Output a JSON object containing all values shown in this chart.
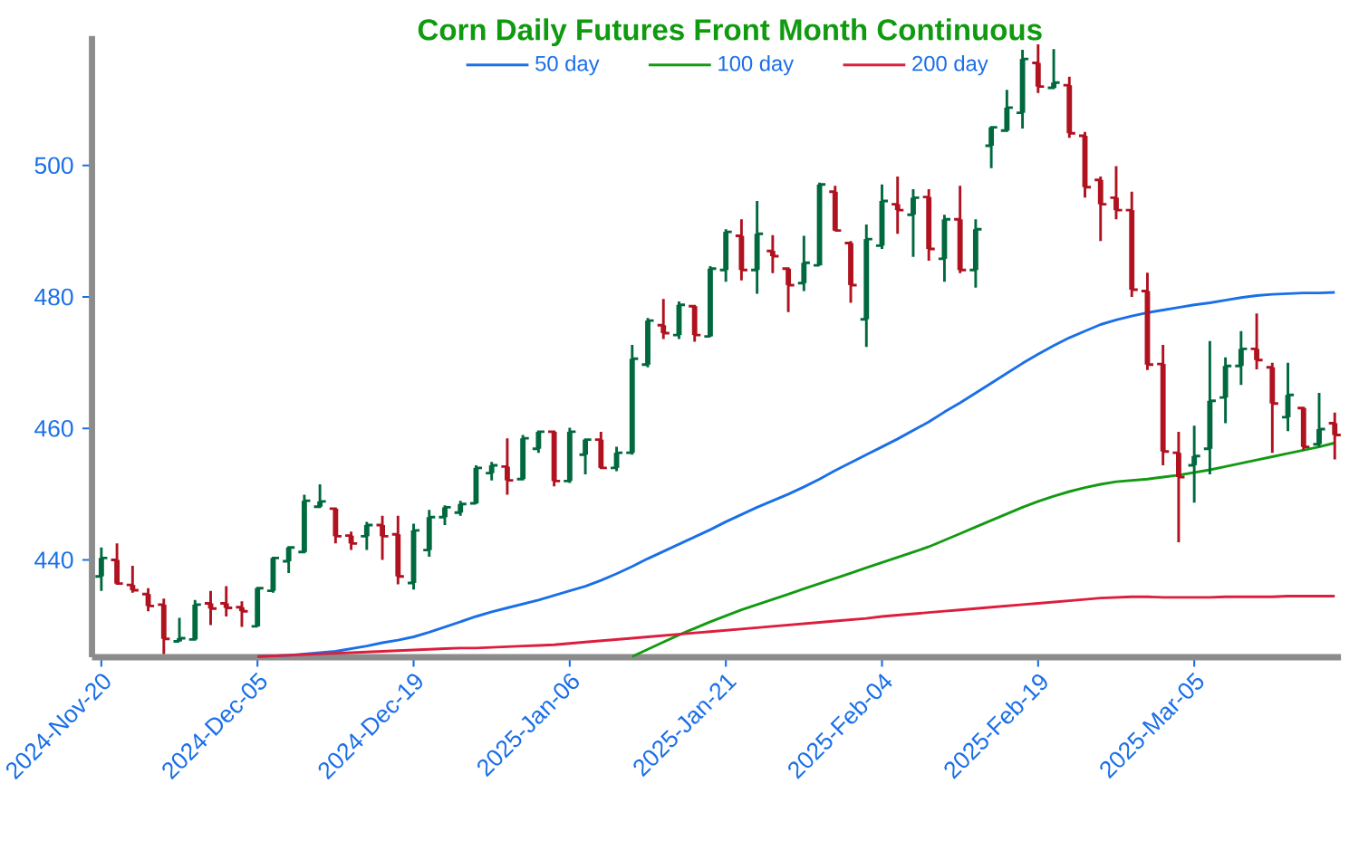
{
  "chart_data": {
    "type": "candlestick",
    "title": "Corn Daily Futures Front Month Continuous",
    "categories": [
      "2024-Nov-20",
      null,
      null,
      null,
      null,
      null,
      null,
      null,
      null,
      null,
      "2024-Dec-05",
      null,
      null,
      null,
      null,
      null,
      null,
      null,
      null,
      null,
      "2024-Dec-19",
      null,
      null,
      null,
      null,
      null,
      null,
      null,
      null,
      null,
      "2025-Jan-06",
      null,
      null,
      null,
      null,
      null,
      null,
      null,
      null,
      null,
      "2025-Jan-21",
      null,
      null,
      null,
      null,
      null,
      null,
      null,
      null,
      null,
      "2025-Feb-04",
      null,
      null,
      null,
      null,
      null,
      null,
      null,
      null,
      null,
      "2025-Feb-19",
      null,
      null,
      null,
      null,
      null,
      null,
      null,
      null,
      null,
      "2025-Mar-05",
      null,
      null,
      null,
      null,
      null,
      null,
      null,
      null,
      null
    ],
    "ohlc": [
      [
        437.5,
        441.9,
        435.3,
        440.3
      ],
      [
        440.0,
        442.5,
        436.2,
        436.4
      ],
      [
        436.2,
        439.1,
        435.0,
        435.4
      ],
      [
        434.8,
        435.7,
        432.2,
        433.0
      ],
      [
        433.2,
        434.1,
        425.7,
        428.0
      ],
      [
        427.6,
        431.2,
        427.6,
        428.1
      ],
      [
        427.9,
        433.9,
        427.7,
        433.2
      ],
      [
        433.4,
        435.3,
        430.1,
        432.6
      ],
      [
        433.4,
        436.0,
        431.4,
        432.7
      ],
      [
        432.8,
        433.7,
        429.8,
        432.2
      ],
      [
        429.9,
        435.9,
        429.8,
        435.7
      ],
      [
        435.3,
        440.5,
        435.0,
        440.3
      ],
      [
        439.8,
        442.1,
        438.0,
        441.9
      ],
      [
        441.2,
        449.9,
        441.0,
        449.0
      ],
      [
        448.1,
        451.5,
        447.9,
        448.9
      ],
      [
        447.8,
        448.0,
        442.5,
        443.6
      ],
      [
        443.7,
        444.3,
        441.5,
        442.5
      ],
      [
        443.6,
        445.8,
        441.5,
        445.3
      ],
      [
        445.3,
        446.7,
        440.0,
        443.6
      ],
      [
        443.9,
        446.7,
        436.3,
        437.5
      ],
      [
        436.5,
        445.5,
        435.5,
        444.5
      ],
      [
        441.5,
        447.6,
        440.5,
        446.5
      ],
      [
        446.5,
        448.3,
        445.3,
        448.0
      ],
      [
        447.2,
        449.0,
        446.7,
        448.5
      ],
      [
        448.6,
        454.4,
        448.5,
        454.0
      ],
      [
        453.2,
        454.9,
        452.1,
        454.4
      ],
      [
        454.2,
        458.5,
        449.9,
        452.1
      ],
      [
        452.3,
        459.0,
        452.1,
        458.5
      ],
      [
        456.9,
        459.7,
        456.3,
        459.5
      ],
      [
        459.5,
        459.7,
        451.2,
        452.0
      ],
      [
        452.0,
        460.1,
        451.7,
        459.5
      ],
      [
        456.0,
        458.5,
        453.0,
        458.3
      ],
      [
        458.3,
        459.5,
        453.8,
        454.0
      ],
      [
        454.0,
        457.2,
        453.5,
        456.3
      ],
      [
        456.3,
        472.7,
        456.0,
        470.6
      ],
      [
        469.7,
        476.8,
        469.3,
        476.4
      ],
      [
        475.7,
        479.7,
        473.6,
        474.5
      ],
      [
        474.2,
        479.3,
        473.6,
        478.8
      ],
      [
        478.6,
        478.8,
        473.2,
        474.2
      ],
      [
        474.0,
        484.7,
        473.9,
        484.3
      ],
      [
        484.1,
        490.3,
        482.3,
        489.9
      ],
      [
        489.3,
        491.8,
        482.5,
        484.1
      ],
      [
        484.1,
        494.6,
        480.5,
        489.6
      ],
      [
        487.0,
        489.4,
        483.6,
        486.2
      ],
      [
        484.3,
        484.5,
        477.7,
        481.8
      ],
      [
        482.1,
        489.3,
        480.9,
        485.2
      ],
      [
        484.8,
        497.4,
        484.8,
        497.1
      ],
      [
        496.0,
        496.9,
        490.0,
        490.1
      ],
      [
        488.2,
        488.5,
        479.1,
        481.8
      ],
      [
        476.6,
        491.0,
        472.4,
        488.8
      ],
      [
        487.8,
        497.1,
        487.3,
        494.6
      ],
      [
        494.1,
        498.3,
        489.6,
        493.2
      ],
      [
        492.5,
        496.4,
        486.1,
        495.1
      ],
      [
        495.2,
        496.4,
        485.5,
        487.3
      ],
      [
        485.8,
        492.5,
        482.3,
        491.8
      ],
      [
        491.8,
        496.9,
        483.6,
        484.1
      ],
      [
        484.1,
        491.8,
        481.4,
        490.3
      ],
      [
        503.0,
        506.0,
        499.6,
        505.8
      ],
      [
        505.3,
        511.5,
        505.1,
        508.8
      ],
      [
        508.0,
        517.6,
        505.6,
        516.2
      ],
      [
        515.6,
        518.4,
        511.0,
        512.0
      ],
      [
        511.8,
        517.7,
        511.6,
        512.6
      ],
      [
        512.2,
        513.5,
        504.2,
        504.9
      ],
      [
        504.5,
        505.1,
        495.1,
        496.7
      ],
      [
        497.8,
        498.3,
        488.5,
        494.1
      ],
      [
        495.1,
        499.9,
        491.8,
        493.2
      ],
      [
        493.2,
        496.0,
        480.0,
        481.1
      ],
      [
        480.9,
        483.7,
        468.9,
        469.7
      ],
      [
        469.8,
        472.7,
        454.4,
        456.5
      ],
      [
        456.3,
        459.5,
        442.7,
        452.6
      ],
      [
        454.4,
        460.4,
        448.7,
        455.8
      ],
      [
        456.9,
        473.3,
        453.0,
        464.2
      ],
      [
        464.7,
        470.8,
        460.8,
        469.5
      ],
      [
        469.5,
        474.8,
        466.6,
        472.1
      ],
      [
        472.1,
        477.5,
        469.0,
        470.4
      ],
      [
        469.3,
        470.0,
        456.3,
        463.8
      ],
      [
        461.7,
        470.0,
        459.6,
        465.1
      ],
      [
        463.1,
        463.3,
        456.7,
        457.2
      ],
      [
        457.6,
        465.4,
        457.2,
        459.9
      ],
      [
        460.8,
        462.4,
        455.3,
        459.0
      ]
    ],
    "colors": [
      "#00693e",
      "#b0121f",
      "#b0121f",
      "#b0121f",
      "#b0121f",
      "#00693e",
      "#00693e",
      "#b0121f",
      "#b0121f",
      "#b0121f",
      "#00693e",
      "#00693e",
      "#00693e",
      "#00693e",
      "#00693e",
      "#b0121f",
      "#b0121f",
      "#00693e",
      "#b0121f",
      "#b0121f",
      "#00693e",
      "#00693e",
      "#00693e",
      "#00693e",
      "#00693e",
      "#00693e",
      "#b0121f",
      "#00693e",
      "#00693e",
      "#b0121f",
      "#00693e",
      "#00693e",
      "#b0121f",
      "#00693e",
      "#00693e",
      "#00693e",
      "#b0121f",
      "#00693e",
      "#b0121f",
      "#00693e",
      "#00693e",
      "#b0121f",
      "#00693e",
      "#b0121f",
      "#b0121f",
      "#00693e",
      "#00693e",
      "#b0121f",
      "#b0121f",
      "#00693e",
      "#00693e",
      "#b0121f",
      "#00693e",
      "#b0121f",
      "#00693e",
      "#b0121f",
      "#00693e",
      "#00693e",
      "#00693e",
      "#00693e",
      "#b0121f",
      "#00693e",
      "#b0121f",
      "#b0121f",
      "#b0121f",
      "#b0121f",
      "#b0121f",
      "#b0121f",
      "#b0121f",
      "#b0121f",
      "#00693e",
      "#00693e",
      "#00693e",
      "#00693e",
      "#b0121f",
      "#b0121f",
      "#00693e",
      "#b0121f",
      "#00693e",
      "#b0121f"
    ],
    "series": [
      {
        "type": "line",
        "name": "50 day",
        "color": "#1a6fe8",
        "values": [
          null,
          null,
          null,
          null,
          null,
          null,
          null,
          null,
          null,
          null,
          425.3,
          425.4,
          425.5,
          425.7,
          425.9,
          426.1,
          426.5,
          426.9,
          427.4,
          427.8,
          428.3,
          429.0,
          429.8,
          430.6,
          431.4,
          432.1,
          432.7,
          433.3,
          433.9,
          434.6,
          435.3,
          436.0,
          436.9,
          437.9,
          439.0,
          440.2,
          441.3,
          442.4,
          443.5,
          444.6,
          445.8,
          446.9,
          448.0,
          449.0,
          450.0,
          451.1,
          452.3,
          453.6,
          454.8,
          456.0,
          457.2,
          458.4,
          459.7,
          461.0,
          462.5,
          463.9,
          465.4,
          466.9,
          468.4,
          469.9,
          471.3,
          472.6,
          473.8,
          474.8,
          475.8,
          476.5,
          477.1,
          477.6,
          478.0,
          478.4,
          478.8,
          479.1,
          479.5,
          479.9,
          480.2,
          480.4,
          480.5,
          480.6,
          480.6,
          480.7
        ]
      },
      {
        "type": "line",
        "name": "100 day",
        "color": "#139a13",
        "values": [
          null,
          null,
          null,
          null,
          null,
          null,
          null,
          null,
          null,
          null,
          null,
          null,
          null,
          null,
          null,
          null,
          null,
          null,
          null,
          null,
          null,
          null,
          null,
          null,
          null,
          null,
          null,
          null,
          null,
          null,
          null,
          null,
          null,
          null,
          425.3,
          426.4,
          427.5,
          428.6,
          429.6,
          430.6,
          431.5,
          432.4,
          433.2,
          434.0,
          434.8,
          435.6,
          436.4,
          437.2,
          438.0,
          438.8,
          439.6,
          440.4,
          441.2,
          442.0,
          443.0,
          444.0,
          445.0,
          446.0,
          447.0,
          448.0,
          448.9,
          449.7,
          450.4,
          451.0,
          451.5,
          451.9,
          452.1,
          452.3,
          452.6,
          452.9,
          453.3,
          453.7,
          454.2,
          454.7,
          455.2,
          455.7,
          456.2,
          456.7,
          457.2,
          457.8
        ]
      },
      {
        "type": "line",
        "name": "200 day",
        "color": "#dc1e3c",
        "values": [
          null,
          null,
          null,
          null,
          null,
          null,
          null,
          null,
          null,
          null,
          425.3,
          425.4,
          425.5,
          425.6,
          425.7,
          425.8,
          425.9,
          426.0,
          426.1,
          426.2,
          426.3,
          426.4,
          426.5,
          426.6,
          426.6,
          426.7,
          426.8,
          426.9,
          427.0,
          427.1,
          427.3,
          427.5,
          427.7,
          427.9,
          428.1,
          428.3,
          428.5,
          428.7,
          428.9,
          429.1,
          429.3,
          429.5,
          429.7,
          429.9,
          430.1,
          430.3,
          430.5,
          430.7,
          430.9,
          431.1,
          431.4,
          431.6,
          431.8,
          432.0,
          432.2,
          432.4,
          432.6,
          432.8,
          433.0,
          433.2,
          433.4,
          433.6,
          433.8,
          434.0,
          434.2,
          434.3,
          434.4,
          434.4,
          434.3,
          434.3,
          434.3,
          434.3,
          434.4,
          434.4,
          434.4,
          434.4,
          434.5,
          434.5,
          434.5,
          434.5
        ]
      }
    ],
    "ylim": [
      425.2,
      519.7
    ],
    "yticks": [
      440,
      460,
      480,
      500
    ],
    "legend": "top"
  }
}
